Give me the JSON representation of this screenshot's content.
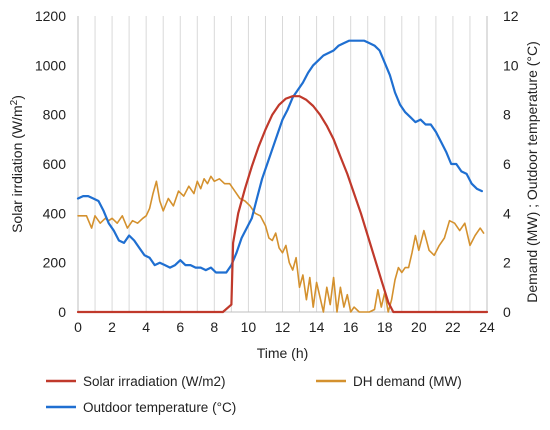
{
  "chart_data": {
    "type": "line",
    "xlabel": "Time (h)",
    "ylabel_left_main": "Solar irrdiation (W/m",
    "ylabel_left_sup": "2",
    "ylabel_left_end": ")",
    "ylabel_right": "Demand (MW) ; Outdoor temperature (°C)",
    "xlim": [
      0,
      24
    ],
    "ylim_left": [
      0,
      1200
    ],
    "ylim_right": [
      0,
      12
    ],
    "x_ticks": [
      "0",
      "2",
      "4",
      "6",
      "8",
      "10",
      "12",
      "14",
      "16",
      "18",
      "20",
      "22",
      "24"
    ],
    "y_left_ticks": [
      "0",
      "200",
      "400",
      "600",
      "800",
      "1000",
      "1200"
    ],
    "y_right_ticks": [
      "0",
      "2",
      "4",
      "6",
      "8",
      "10",
      "12"
    ],
    "grid": "vertical",
    "legend_position": "bottom",
    "series": [
      {
        "name": "Solar irradiation (W/m2)",
        "axis": "left",
        "color": "#c0392b",
        "x": [
          0,
          8.5,
          9.0,
          9.1,
          9.4,
          9.8,
          10.2,
          10.6,
          11.0,
          11.4,
          11.8,
          12.2,
          12.6,
          13.0,
          13.4,
          13.8,
          14.2,
          14.6,
          15.0,
          15.4,
          15.8,
          16.2,
          16.6,
          17.0,
          17.4,
          17.8,
          18.2,
          18.5,
          24
        ],
        "values": [
          0,
          0,
          30,
          280,
          400,
          500,
          590,
          670,
          740,
          800,
          840,
          865,
          875,
          875,
          860,
          835,
          800,
          755,
          700,
          630,
          560,
          480,
          400,
          310,
          220,
          130,
          40,
          0,
          0
        ]
      },
      {
        "name": "DH demand (MW)",
        "axis": "right",
        "color": "#d4912e",
        "x": [
          0,
          0.5,
          0.8,
          1.0,
          1.3,
          1.6,
          1.8,
          2.0,
          2.3,
          2.6,
          2.9,
          3.2,
          3.5,
          3.8,
          4.0,
          4.2,
          4.4,
          4.6,
          4.8,
          5.0,
          5.3,
          5.6,
          5.9,
          6.2,
          6.5,
          6.8,
          7.0,
          7.2,
          7.4,
          7.6,
          7.8,
          8.0,
          8.3,
          8.6,
          8.9,
          9.2,
          9.5,
          9.8,
          10.1,
          10.4,
          10.7,
          11.0,
          11.2,
          11.4,
          11.6,
          11.8,
          12.0,
          12.2,
          12.4,
          12.6,
          12.8,
          13.0,
          13.2,
          13.4,
          13.6,
          13.8,
          14.0,
          14.2,
          14.4,
          14.6,
          14.8,
          15.0,
          15.2,
          15.4,
          15.6,
          15.8,
          16.0,
          16.2,
          16.5,
          16.8,
          17.1,
          17.4,
          17.6,
          17.8,
          18.0,
          18.2,
          18.4,
          18.6,
          18.8,
          19.0,
          19.2,
          19.4,
          19.6,
          19.8,
          20.0,
          20.3,
          20.6,
          20.9,
          21.2,
          21.5,
          21.8,
          22.1,
          22.4,
          22.7,
          23.0,
          23.3,
          23.6,
          23.8
        ],
        "values": [
          3.9,
          3.9,
          3.4,
          3.9,
          3.6,
          3.8,
          3.7,
          3.8,
          3.6,
          3.9,
          3.4,
          3.7,
          3.6,
          3.8,
          3.9,
          4.2,
          4.8,
          5.3,
          4.5,
          4.1,
          4.6,
          4.3,
          4.9,
          4.7,
          5.1,
          4.8,
          5.3,
          5.0,
          5.4,
          5.2,
          5.5,
          5.3,
          5.4,
          5.2,
          5.2,
          4.9,
          4.6,
          4.5,
          4.3,
          4.0,
          3.9,
          3.5,
          3.0,
          2.9,
          3.2,
          2.6,
          2.4,
          2.7,
          2.0,
          1.7,
          2.2,
          1.0,
          1.5,
          0.5,
          1.4,
          0.2,
          1.2,
          0.6,
          0.0,
          1.0,
          0.3,
          1.4,
          0.0,
          1.0,
          0.2,
          0.7,
          0.0,
          0.2,
          0.0,
          0.0,
          0.0,
          0.1,
          0.9,
          0.2,
          0.8,
          0.0,
          0.5,
          1.3,
          1.8,
          1.6,
          1.8,
          1.8,
          2.4,
          3.1,
          2.5,
          3.3,
          2.5,
          2.3,
          2.7,
          3.0,
          3.7,
          3.6,
          3.3,
          3.6,
          2.7,
          3.1,
          3.4,
          3.2
        ]
      },
      {
        "name": "Outdoor temperature (°C)",
        "axis": "right",
        "color": "#1f6fd1",
        "x": [
          0,
          0.3,
          0.6,
          0.9,
          1.2,
          1.5,
          1.8,
          2.1,
          2.4,
          2.7,
          3.0,
          3.3,
          3.6,
          3.9,
          4.2,
          4.5,
          4.8,
          5.1,
          5.4,
          5.7,
          6.0,
          6.3,
          6.6,
          6.9,
          7.2,
          7.5,
          7.8,
          8.1,
          8.4,
          8.7,
          9.0,
          9.3,
          9.6,
          9.9,
          10.2,
          10.5,
          10.8,
          11.1,
          11.4,
          11.7,
          12.0,
          12.3,
          12.6,
          12.9,
          13.2,
          13.5,
          13.8,
          14.1,
          14.4,
          14.7,
          15.0,
          15.3,
          15.6,
          15.9,
          16.2,
          16.5,
          16.8,
          17.1,
          17.4,
          17.7,
          18.0,
          18.3,
          18.6,
          18.9,
          19.2,
          19.5,
          19.8,
          20.1,
          20.4,
          20.7,
          21.0,
          21.3,
          21.6,
          21.9,
          22.2,
          22.5,
          22.8,
          23.1,
          23.4,
          23.7
        ],
        "values": [
          4.6,
          4.7,
          4.7,
          4.6,
          4.5,
          4.1,
          3.6,
          3.3,
          2.9,
          2.8,
          3.1,
          2.9,
          2.6,
          2.3,
          2.2,
          1.9,
          2.0,
          1.9,
          1.8,
          1.9,
          2.1,
          1.9,
          1.9,
          1.8,
          1.8,
          1.7,
          1.8,
          1.6,
          1.6,
          1.6,
          1.9,
          2.4,
          3.0,
          3.4,
          3.8,
          4.6,
          5.4,
          6.0,
          6.6,
          7.2,
          7.8,
          8.2,
          8.7,
          9.0,
          9.3,
          9.7,
          10.0,
          10.2,
          10.4,
          10.5,
          10.6,
          10.8,
          10.9,
          11.0,
          11.0,
          11.0,
          11.0,
          10.9,
          10.8,
          10.6,
          10.1,
          9.6,
          8.9,
          8.4,
          8.1,
          7.9,
          7.7,
          7.8,
          7.6,
          7.6,
          7.3,
          6.9,
          6.5,
          6.0,
          6.0,
          5.7,
          5.6,
          5.2,
          5.0,
          4.9
        ]
      }
    ]
  }
}
